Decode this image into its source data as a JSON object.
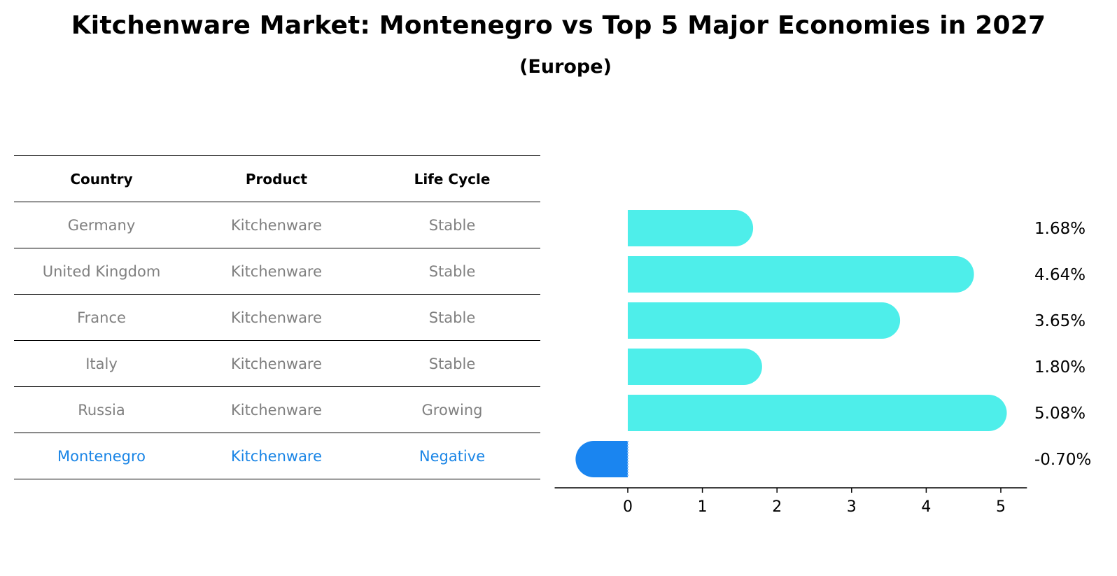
{
  "title": "Kitchenware Market: Montenegro vs Top 5 Major Economies in 2027",
  "subtitle": "(Europe)",
  "table": {
    "headers": [
      "Country",
      "Product",
      "Life Cycle"
    ],
    "rows": [
      {
        "country": "Germany",
        "product": "Kitchenware",
        "life_cycle": "Stable"
      },
      {
        "country": "United Kingdom",
        "product": "Kitchenware",
        "life_cycle": "Stable"
      },
      {
        "country": "France",
        "product": "Kitchenware",
        "life_cycle": "Stable"
      },
      {
        "country": "Italy",
        "product": "Kitchenware",
        "life_cycle": "Stable"
      },
      {
        "country": "Russia",
        "product": "Kitchenware",
        "life_cycle": "Growing"
      },
      {
        "country": "Montenegro",
        "product": "Kitchenware",
        "life_cycle": "Negative"
      }
    ]
  },
  "colors": {
    "bar": "#4eeeea",
    "highlight": "#1a85f0",
    "muted_text": "#808080"
  },
  "chart_data": {
    "type": "bar",
    "orientation": "horizontal",
    "categories": [
      "Germany",
      "United Kingdom",
      "France",
      "Italy",
      "Russia",
      "Montenegro"
    ],
    "values": [
      1.68,
      4.64,
      3.65,
      1.8,
      5.08,
      -0.7
    ],
    "value_labels": [
      "1.68%",
      "4.64%",
      "3.65%",
      "1.80%",
      "5.08%",
      "-0.70%"
    ],
    "xlim": [
      -0.98,
      5.35
    ],
    "xticks": [
      0,
      1,
      2,
      3,
      4,
      5
    ],
    "xlabel": "",
    "ylabel": "",
    "grid": false
  }
}
